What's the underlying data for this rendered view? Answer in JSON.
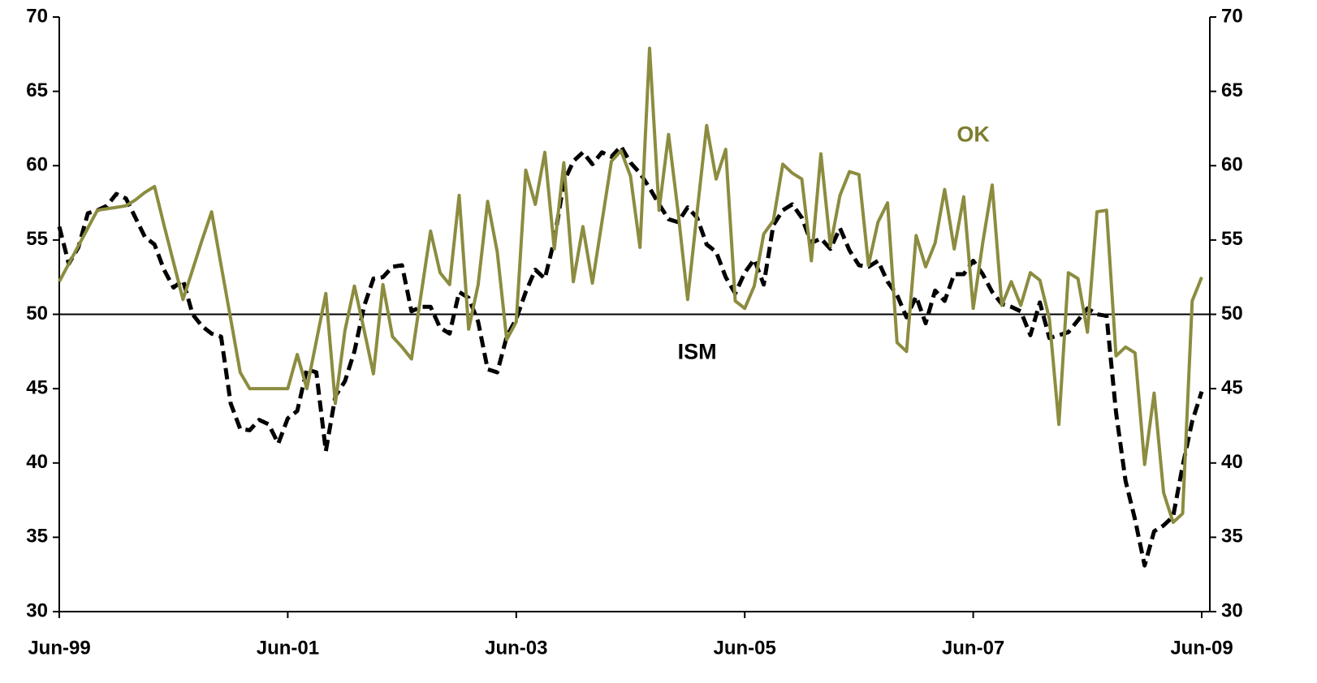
{
  "chart_data": {
    "type": "line",
    "x": [
      "1999-06",
      "1999-07",
      "1999-08",
      "1999-09",
      "1999-10",
      "1999-11",
      "1999-12",
      "2000-01",
      "2000-02",
      "2000-03",
      "2000-04",
      "2000-05",
      "2000-06",
      "2000-07",
      "2000-08",
      "2000-09",
      "2000-10",
      "2000-11",
      "2000-12",
      "2001-01",
      "2001-02",
      "2001-03",
      "2001-04",
      "2001-05",
      "2001-06",
      "2001-07",
      "2001-08",
      "2001-09",
      "2001-10",
      "2001-11",
      "2001-12",
      "2002-01",
      "2002-02",
      "2002-03",
      "2002-04",
      "2002-05",
      "2002-06",
      "2002-07",
      "2002-08",
      "2002-09",
      "2002-10",
      "2002-11",
      "2002-12",
      "2003-01",
      "2003-02",
      "2003-03",
      "2003-04",
      "2003-05",
      "2003-06",
      "2003-07",
      "2003-08",
      "2003-09",
      "2003-10",
      "2003-11",
      "2003-12",
      "2004-01",
      "2004-02",
      "2004-03",
      "2004-04",
      "2004-05",
      "2004-06",
      "2004-07",
      "2004-08",
      "2004-09",
      "2004-10",
      "2004-11",
      "2004-12",
      "2005-01",
      "2005-02",
      "2005-03",
      "2005-04",
      "2005-05",
      "2005-06",
      "2005-07",
      "2005-08",
      "2005-09",
      "2005-10",
      "2005-11",
      "2005-12",
      "2006-01",
      "2006-02",
      "2006-03",
      "2006-04",
      "2006-05",
      "2006-06",
      "2006-07",
      "2006-08",
      "2006-09",
      "2006-10",
      "2006-11",
      "2006-12",
      "2007-01",
      "2007-02",
      "2007-03",
      "2007-04",
      "2007-05",
      "2007-06",
      "2007-07",
      "2007-08",
      "2007-09",
      "2007-10",
      "2007-11",
      "2007-12",
      "2008-01",
      "2008-02",
      "2008-03",
      "2008-04",
      "2008-05",
      "2008-06",
      "2008-07",
      "2008-08",
      "2008-09",
      "2008-10",
      "2008-11",
      "2008-12",
      "2009-01",
      "2009-02",
      "2009-03",
      "2009-04",
      "2009-05",
      "2009-06"
    ],
    "series": [
      {
        "name": "OK",
        "color": "#8c8c40",
        "dash": false,
        "values": [
          52.2,
          53.4,
          54.6,
          55.8,
          57,
          57.1,
          57.2,
          57.3,
          57.7,
          58.2,
          58.6,
          56,
          53.5,
          51,
          53,
          55,
          56.9,
          53.3,
          49.7,
          46.1,
          45,
          45,
          45,
          45,
          45,
          47.3,
          45,
          48.2,
          51.4,
          44,
          48.9,
          51.9,
          49,
          46,
          52,
          48.5,
          47.8,
          47,
          51.3,
          55.6,
          52.8,
          52,
          58,
          49,
          52,
          57.6,
          54.2,
          48.3,
          49.5,
          59.7,
          57.4,
          60.9,
          54.4,
          60.2,
          52.2,
          55.9,
          52.1,
          56.2,
          60.3,
          61,
          59.3,
          54.5,
          67.9,
          57,
          62.1,
          56.9,
          51,
          56.9,
          62.7,
          59.1,
          61.1,
          50.9,
          50.4,
          51.9,
          55.4,
          56.3,
          60.1,
          59.5,
          59.1,
          53.6,
          60.8,
          54.6,
          58,
          59.6,
          59.4,
          53.3,
          56.2,
          57.5,
          48.1,
          47.5,
          55.3,
          53.2,
          54.8,
          58.4,
          54.4,
          57.9,
          50.4,
          54.8,
          58.7,
          50.6,
          52.2,
          50.6,
          52.8,
          52.3,
          49.7,
          42.6,
          52.8,
          52.4,
          48.8,
          56.9,
          57,
          47.2,
          47.8,
          47.4,
          39.9,
          44.7,
          38,
          36,
          36.6,
          50.9,
          52.5
        ]
      },
      {
        "name": "ISM",
        "color": "#000000",
        "dash": true,
        "values": [
          55.9,
          53.4,
          54.5,
          56.8,
          57,
          57.3,
          58.1,
          57.8,
          56.5,
          55.2,
          54.7,
          53,
          51.8,
          52.3,
          50,
          49.2,
          48.7,
          48.5,
          44,
          42.3,
          42.2,
          42.9,
          42.6,
          41.3,
          43,
          43.5,
          46.3,
          46.1,
          40.8,
          44.5,
          45.5,
          47.5,
          50.5,
          52.4,
          52.5,
          53.2,
          53.3,
          50.2,
          50.5,
          50.5,
          49.1,
          48.7,
          51.5,
          51.1,
          49.5,
          46.3,
          46.1,
          48.5,
          49.7,
          51.5,
          53,
          52.4,
          55,
          58.9,
          60.3,
          60.9,
          60.1,
          60.9,
          60.6,
          61.3,
          60.2,
          59.5,
          58.5,
          57.4,
          56.4,
          56.2,
          57.2,
          56.5,
          54.7,
          54.2,
          52.5,
          51.4,
          52.8,
          53.7,
          52,
          56,
          57,
          57.4,
          56.5,
          54.8,
          55.1,
          54.4,
          55.8,
          54.3,
          53.3,
          53.2,
          53.6,
          52.2,
          51.3,
          49.8,
          51.2,
          49.4,
          51.6,
          50.9,
          52.7,
          52.7,
          53.6,
          52.7,
          51.5,
          50.7,
          50.5,
          50.2,
          48.6,
          50.8,
          48.4,
          48.6,
          48.8,
          49.6,
          50.4,
          50,
          49.9,
          43.4,
          38.8,
          36.2,
          33.1,
          35.4,
          35.8,
          36.4,
          39.8,
          42.8,
          44.8
        ]
      }
    ],
    "xticks": [
      {
        "value": "1999-06",
        "label": "Jun-99"
      },
      {
        "value": "2001-06",
        "label": "Jun-01"
      },
      {
        "value": "2003-06",
        "label": "Jun-03"
      },
      {
        "value": "2005-06",
        "label": "Jun-05"
      },
      {
        "value": "2007-06",
        "label": "Jun-07"
      },
      {
        "value": "2009-06",
        "label": "Jun-09"
      }
    ],
    "ylim": [
      30,
      70
    ],
    "yticks": [
      30,
      35,
      40,
      45,
      50,
      55,
      60,
      65,
      70
    ],
    "y2lim": [
      30,
      70
    ],
    "y2ticks": [
      30,
      35,
      40,
      45,
      50,
      55,
      60,
      65,
      70
    ],
    "hline": 50,
    "annotations": [
      {
        "text": "OK",
        "x": "2007-06",
        "y": 62,
        "color": "#7d7d30"
      },
      {
        "text": "ISM",
        "x": "2005-01",
        "y": 47.4,
        "color": "#000000"
      }
    ]
  }
}
